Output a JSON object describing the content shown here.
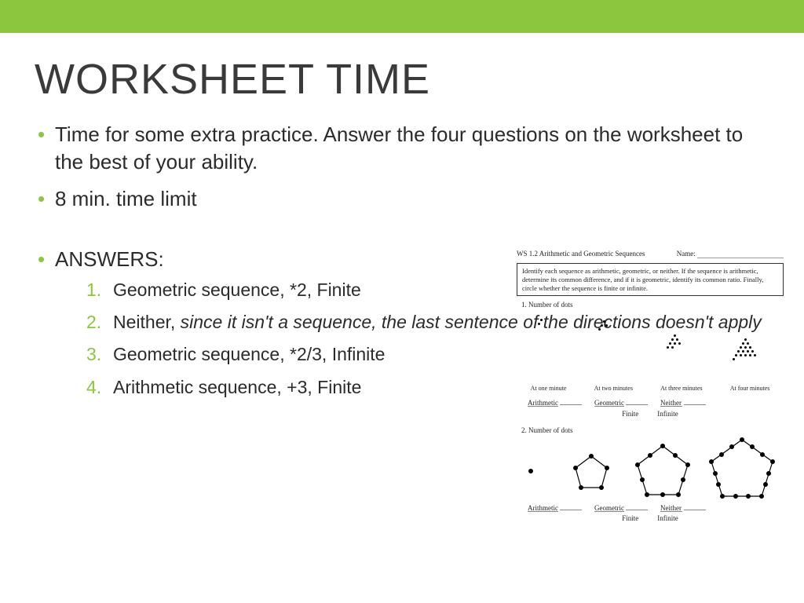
{
  "accent_color": "#8cc63f",
  "title": "WORKSHEET TIME",
  "bullets": [
    "Time for some extra practice. Answer the four questions on the worksheet to the best of your ability.",
    "8 min. time limit"
  ],
  "answers_label": "ANSWERS:",
  "answers": [
    {
      "plain": "Geometric sequence, *2, Finite",
      "italic": ""
    },
    {
      "plain": "Neither, ",
      "italic": "since it isn't a sequence, the last sentence of the directions doesn't apply"
    },
    {
      "plain": "Geometric sequence, *2/3, Infinite",
      "italic": ""
    },
    {
      "plain": "Arithmetic sequence, +3, Finite",
      "italic": ""
    }
  ],
  "worksheet": {
    "header_left": "WS 1.2 Arithmetic and Geometric Sequences",
    "header_right": "Name:",
    "directions": "Identify each sequence as arithmetic, geometric, or neither. If the sequence is arithmetic, determine its common difference, and if it is geometric, identify its common ratio. Finally, circle whether the sequence is finite or infinite.",
    "q1": "1. Number of dots",
    "time_labels": [
      "At one minute",
      "At two minutes",
      "At three minutes",
      "At four minutes"
    ],
    "choice_labels": [
      "Arithmetic",
      "Geometric",
      "Neither"
    ],
    "finite_labels": [
      "Finite",
      "Infinite"
    ],
    "q2": "2. Number of dots"
  }
}
